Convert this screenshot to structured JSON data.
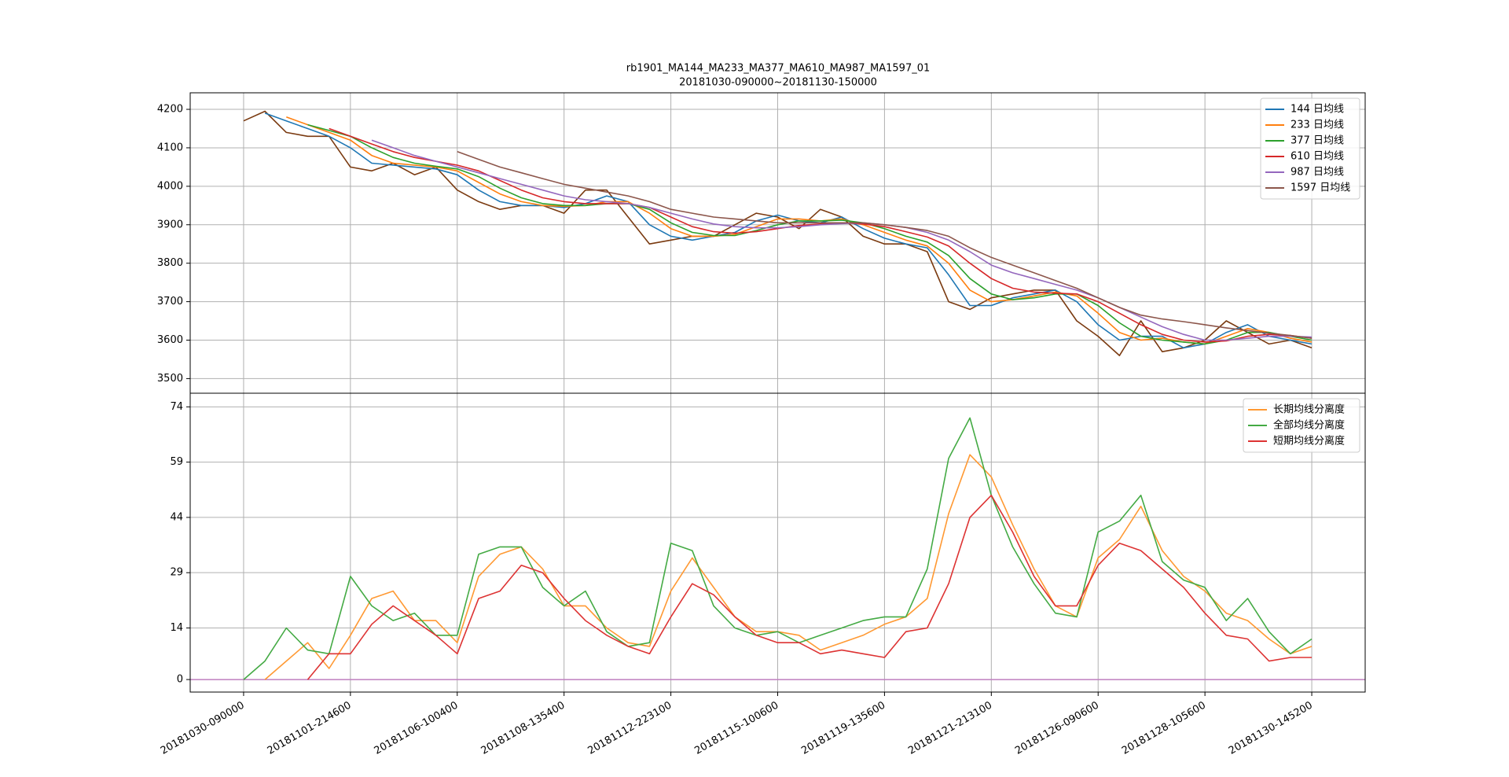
{
  "chart_data": [
    {
      "type": "line",
      "title": "rb1901_MA144_MA233_MA377_MA610_MA987_MA1597_01",
      "subtitle": "20181030-090000~20181130-150000",
      "x": [
        0,
        40,
        80,
        120,
        160,
        200,
        240,
        280,
        320,
        360,
        400,
        440,
        480,
        520,
        560,
        600,
        640,
        680,
        720,
        760,
        800,
        840,
        880,
        920,
        960,
        1000,
        1040,
        1080,
        1120,
        1160,
        1200,
        1240,
        1280,
        1320,
        1360,
        1400,
        1440,
        1480,
        1520,
        1560,
        1600,
        1640,
        1680,
        1720,
        1760,
        1800,
        1840,
        1880,
        1920,
        1960,
        2000
      ],
      "xlim": [
        -100,
        2100
      ],
      "ylim": [
        3462,
        4243
      ],
      "yticks": [
        3500,
        3600,
        3700,
        3800,
        3900,
        4000,
        4100,
        4200
      ],
      "grid": true,
      "legend": "upper right",
      "series": [
        {
          "color": "#7a3a10",
          "values": [
            4170,
            4195,
            4140,
            4130,
            4130,
            4050,
            4040,
            4060,
            4030,
            4050,
            3990,
            3960,
            3940,
            3950,
            3950,
            3930,
            3990,
            3990,
            3920,
            3850,
            3860,
            3870,
            3870,
            3900,
            3930,
            3920,
            3890,
            3940,
            3920,
            3870,
            3850,
            3850,
            3830,
            3700,
            3680,
            3710,
            3720,
            3730,
            3730,
            3650,
            3610,
            3560,
            3650,
            3570,
            3580,
            3600,
            3650,
            3620,
            3590,
            3600,
            3580
          ]
        },
        {
          "name": "144 日均线",
          "color": "#1f77b4",
          "values": [
            null,
            4190,
            4170,
            4150,
            4130,
            4100,
            4060,
            4055,
            4050,
            4045,
            4030,
            3990,
            3960,
            3950,
            3950,
            3945,
            3955,
            3975,
            3960,
            3900,
            3870,
            3860,
            3870,
            3880,
            3910,
            3925,
            3910,
            3905,
            3920,
            3890,
            3865,
            3850,
            3840,
            3770,
            3690,
            3690,
            3710,
            3720,
            3730,
            3700,
            3640,
            3600,
            3610,
            3610,
            3580,
            3590,
            3620,
            3640,
            3610,
            3600,
            3590
          ]
        },
        {
          "name": "233 日均线",
          "color": "#ff7f0e",
          "values": [
            null,
            null,
            4180,
            4160,
            4140,
            4120,
            4080,
            4060,
            4055,
            4050,
            4040,
            4010,
            3980,
            3960,
            3950,
            3948,
            3950,
            3960,
            3960,
            3930,
            3890,
            3870,
            3870,
            3875,
            3895,
            3915,
            3915,
            3910,
            3915,
            3900,
            3880,
            3860,
            3845,
            3800,
            3730,
            3700,
            3705,
            3715,
            3725,
            3715,
            3670,
            3620,
            3600,
            3605,
            3595,
            3590,
            3610,
            3630,
            3620,
            3605,
            3595
          ]
        },
        {
          "name": "377 日均线",
          "color": "#2ca02c",
          "values": [
            null,
            null,
            null,
            4160,
            4145,
            4130,
            4100,
            4075,
            4060,
            4052,
            4045,
            4025,
            3995,
            3970,
            3955,
            3950,
            3950,
            3955,
            3955,
            3940,
            3905,
            3880,
            3872,
            3872,
            3885,
            3900,
            3910,
            3910,
            3912,
            3905,
            3890,
            3870,
            3855,
            3820,
            3760,
            3720,
            3705,
            3710,
            3720,
            3720,
            3690,
            3645,
            3610,
            3600,
            3595,
            3590,
            3600,
            3620,
            3620,
            3610,
            3600
          ]
        },
        {
          "name": "610 日均线",
          "color": "#d62728",
          "values": [
            null,
            null,
            null,
            null,
            4150,
            4130,
            4110,
            4090,
            4075,
            4065,
            4055,
            4040,
            4015,
            3990,
            3970,
            3960,
            3955,
            3955,
            3955,
            3945,
            3920,
            3895,
            3882,
            3878,
            3882,
            3890,
            3898,
            3902,
            3905,
            3902,
            3895,
            3882,
            3868,
            3845,
            3800,
            3760,
            3735,
            3725,
            3722,
            3720,
            3700,
            3670,
            3640,
            3615,
            3600,
            3595,
            3598,
            3610,
            3615,
            3612,
            3605
          ]
        },
        {
          "name": "987 日均线",
          "color": "#9467bd",
          "values": [
            null,
            null,
            null,
            null,
            null,
            null,
            4120,
            4100,
            4080,
            4065,
            4050,
            4035,
            4020,
            4005,
            3990,
            3975,
            3965,
            3960,
            3955,
            3945,
            3930,
            3915,
            3902,
            3895,
            3892,
            3892,
            3895,
            3900,
            3903,
            3905,
            3900,
            3893,
            3880,
            3860,
            3830,
            3795,
            3775,
            3760,
            3745,
            3730,
            3710,
            3685,
            3660,
            3635,
            3615,
            3600,
            3600,
            3605,
            3610,
            3610,
            3608
          ]
        },
        {
          "name": "1597 日均线",
          "color": "#8c564b",
          "values": [
            null,
            null,
            null,
            null,
            null,
            null,
            null,
            null,
            null,
            null,
            4090,
            4070,
            4050,
            4035,
            4020,
            4005,
            3995,
            3985,
            3975,
            3960,
            3940,
            3930,
            3920,
            3915,
            3910,
            3905,
            3905,
            3905,
            3905,
            3905,
            3900,
            3893,
            3885,
            3870,
            3840,
            3815,
            3795,
            3775,
            3755,
            3735,
            3710,
            3685,
            3665,
            3655,
            3648,
            3640,
            3632,
            3625,
            3618,
            3612,
            3605
          ]
        }
      ]
    },
    {
      "type": "line",
      "x": [
        0,
        40,
        80,
        120,
        160,
        200,
        240,
        280,
        320,
        360,
        400,
        440,
        480,
        520,
        560,
        600,
        640,
        680,
        720,
        760,
        800,
        840,
        880,
        920,
        960,
        1000,
        1040,
        1080,
        1120,
        1160,
        1200,
        1240,
        1280,
        1320,
        1360,
        1400,
        1440,
        1480,
        1520,
        1560,
        1600,
        1640,
        1680,
        1720,
        1760,
        1800,
        1840,
        1880,
        1920,
        1960,
        2000
      ],
      "xlim": [
        -100,
        2100
      ],
      "xticks": [
        {
          "value": 0,
          "label": "20181030-090000"
        },
        {
          "value": 200,
          "label": "20181101-214600"
        },
        {
          "value": 400,
          "label": "20181106-100400"
        },
        {
          "value": 600,
          "label": "20181108-135400"
        },
        {
          "value": 800,
          "label": "20181112-223100"
        },
        {
          "value": 1000,
          "label": "20181115-100600"
        },
        {
          "value": 1200,
          "label": "20181119-135600"
        },
        {
          "value": 1400,
          "label": "20181121-213100"
        },
        {
          "value": 1600,
          "label": "20181126-090600"
        },
        {
          "value": 1800,
          "label": "20181128-105600"
        },
        {
          "value": 2000,
          "label": "20181130-145200"
        }
      ],
      "ylim": [
        -3.4,
        77.7
      ],
      "yticks": [
        0,
        14,
        29,
        44,
        59,
        74
      ],
      "grid": true,
      "legend": "upper right",
      "hline": {
        "value": 0,
        "color": "#c080c0"
      },
      "series": [
        {
          "name": "长期均线分离度",
          "color": "#ff9933",
          "values": [
            null,
            0,
            5,
            10,
            3,
            12,
            22,
            24,
            16,
            16,
            10,
            28,
            34,
            36,
            30,
            20,
            20,
            14,
            10,
            9,
            24,
            33,
            25,
            17,
            13,
            13,
            12,
            8,
            10,
            12,
            15,
            17,
            22,
            45,
            61,
            55,
            42,
            30,
            20,
            17,
            33,
            38,
            47,
            35,
            28,
            24,
            18,
            16,
            11,
            7,
            9
          ]
        },
        {
          "name": "全部均线分离度",
          "color": "#44aa44",
          "values": [
            0,
            5,
            14,
            8,
            7,
            28,
            20,
            16,
            18,
            12,
            12,
            34,
            36,
            36,
            25,
            20,
            24,
            13,
            9,
            10,
            37,
            35,
            20,
            14,
            12,
            13,
            10,
            12,
            14,
            16,
            17,
            17,
            30,
            60,
            71,
            50,
            36,
            26,
            18,
            17,
            40,
            43,
            50,
            32,
            27,
            25,
            16,
            22,
            13,
            7,
            11
          ]
        },
        {
          "name": "短期均线分离度",
          "color": "#dd3333",
          "values": [
            null,
            null,
            null,
            0,
            7,
            7,
            15,
            20,
            16,
            12,
            7,
            22,
            24,
            31,
            29,
            22,
            16,
            12,
            9,
            7,
            17,
            26,
            23,
            17,
            12,
            10,
            10,
            7,
            8,
            7,
            6,
            13,
            14,
            26,
            44,
            50,
            40,
            28,
            20,
            20,
            31,
            37,
            35,
            30,
            25,
            18,
            12,
            11,
            5,
            6,
            6
          ]
        }
      ]
    }
  ]
}
